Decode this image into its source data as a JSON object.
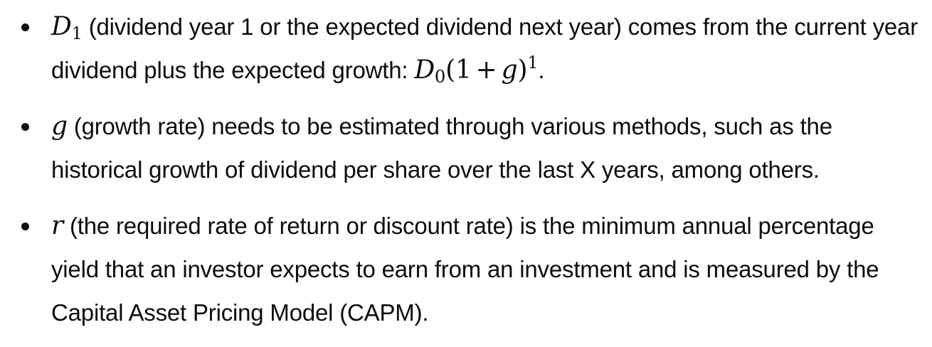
{
  "items": [
    {
      "symbol": "D",
      "symbol_sub": "1",
      "text_1": " (dividend year 1 or the expected dividend next year) comes from the current year dividend plus the expected growth: ",
      "formula": {
        "base": "D",
        "base_sub": "0",
        "open": "(1",
        "op": "+",
        "var": "g",
        "close": ")",
        "exponent": "1"
      },
      "text_2": "."
    },
    {
      "symbol": "g",
      "text_1": " (growth rate) needs to be estimated through various methods, such as the historical growth of dividend per share over the last X years, among others."
    },
    {
      "symbol": "r",
      "text_1": " (the required rate of return or discount rate) is the minimum annual percentage yield that an investor expects to earn from an investment and is measured by the Capital Asset Pricing Model (CAPM)."
    }
  ]
}
